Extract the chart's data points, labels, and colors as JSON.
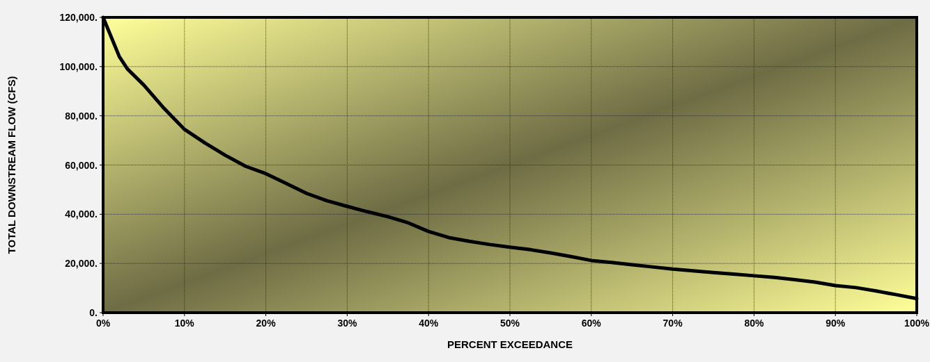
{
  "chart_data": {
    "type": "line",
    "xlabel": "PERCENT EXCEEDANCE",
    "ylabel": "TOTAL DOWNSTREAM FLOW (CFS)",
    "x": [
      0,
      2,
      3,
      5,
      7.5,
      10,
      12.5,
      15,
      17.5,
      20,
      22.5,
      25,
      27.5,
      30,
      32.5,
      35,
      37.5,
      40,
      42.5,
      45,
      47.5,
      50,
      52.5,
      55,
      57.5,
      60,
      62.5,
      65,
      67.5,
      70,
      72.5,
      75,
      77.5,
      80,
      82.5,
      85,
      87.5,
      90,
      92.5,
      95,
      97.5,
      100
    ],
    "series": [
      {
        "color": "#000000",
        "values": [
          120000,
          104000,
          99000,
          92500,
          83000,
          74500,
          69000,
          64000,
          59500,
          56500,
          52500,
          48500,
          45500,
          43200,
          41000,
          39000,
          36500,
          33000,
          30500,
          29000,
          27700,
          26600,
          25600,
          24300,
          22800,
          21200,
          20400,
          19500,
          18600,
          17700,
          17000,
          16300,
          15700,
          15000,
          14300,
          13400,
          12400,
          11000,
          10200,
          8800,
          7300,
          5700
        ]
      }
    ],
    "xlim": [
      0,
      100
    ],
    "ylim": [
      0,
      120000
    ],
    "xticks": [
      {
        "value": 0,
        "label": "0%"
      },
      {
        "value": 10,
        "label": "10%"
      },
      {
        "value": 20,
        "label": "20%"
      },
      {
        "value": 30,
        "label": "30%"
      },
      {
        "value": 40,
        "label": "40%"
      },
      {
        "value": 50,
        "label": "50%"
      },
      {
        "value": 60,
        "label": "60%"
      },
      {
        "value": 70,
        "label": "70%"
      },
      {
        "value": 80,
        "label": "80%"
      },
      {
        "value": 90,
        "label": "90%"
      },
      {
        "value": 100,
        "label": "100%"
      }
    ],
    "yticks": [
      {
        "value": 0,
        "label": "0."
      },
      {
        "value": 20000,
        "label": "20,000."
      },
      {
        "value": 40000,
        "label": "40,000."
      },
      {
        "value": 60000,
        "label": "60,000."
      },
      {
        "value": 80000,
        "label": "80,000."
      },
      {
        "value": 100000,
        "label": "100,000."
      },
      {
        "value": 120000,
        "label": "120,000."
      }
    ],
    "grid": true,
    "line_style": "solid",
    "marker": "none"
  }
}
